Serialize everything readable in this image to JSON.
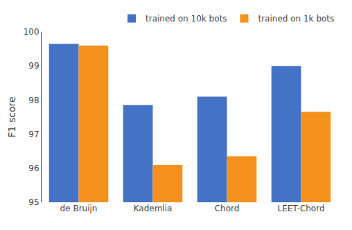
{
  "chart_data": {
    "type": "bar",
    "categories": [
      "de Bruijn",
      "Kademlia",
      "Chord",
      "LEET-Chord"
    ],
    "series": [
      {
        "name": "trained on 10k bots",
        "color": "#4472c4",
        "values": [
          99.65,
          97.85,
          98.1,
          99.0
        ]
      },
      {
        "name": "trained on 1k bots",
        "color": "#f5921e",
        "values": [
          99.6,
          96.1,
          96.35,
          97.65
        ]
      }
    ],
    "ylabel": "F1 score",
    "ylim": [
      95,
      100
    ],
    "yticks": [
      95,
      96,
      97,
      98,
      99,
      100
    ],
    "grid": false,
    "legend": "upper right"
  }
}
